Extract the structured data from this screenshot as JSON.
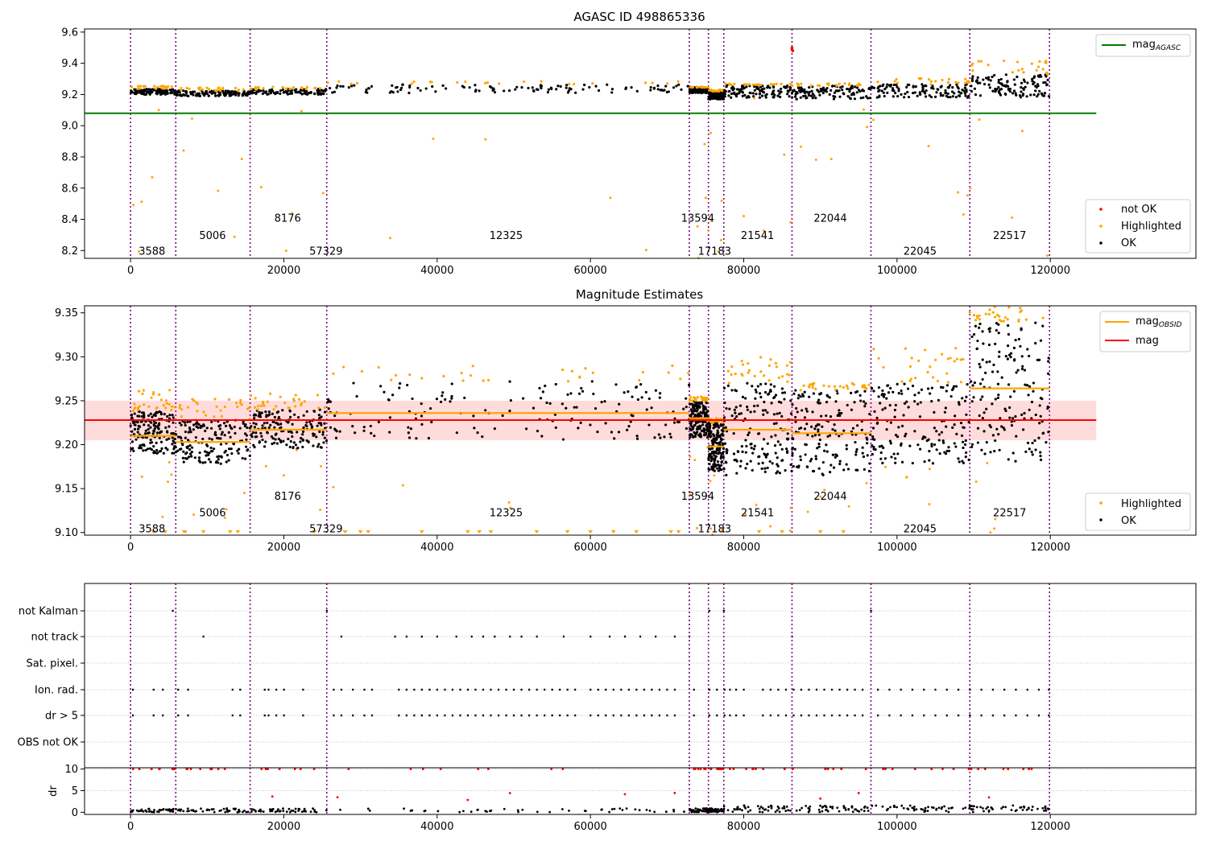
{
  "chart_data": [
    {
      "type": "scatter",
      "title": "AGASC ID 498865336",
      "xlim": [
        -6000,
        139000
      ],
      "ylim": [
        8.15,
        9.62
      ],
      "xticks": [
        0,
        20000,
        40000,
        60000,
        80000,
        100000,
        120000
      ],
      "yticks": [
        8.2,
        8.4,
        8.6,
        8.8,
        9.0,
        9.2,
        9.4,
        9.6
      ],
      "agasc_mag": 9.08,
      "reference_line_x_end": 126000,
      "observation_boundaries": [
        0,
        5900,
        15600,
        25600,
        72900,
        75400,
        77400,
        86300,
        96600,
        109500,
        119900
      ],
      "obsid_labels": [
        {
          "text": "3588",
          "x": 2800,
          "y": 8.2
        },
        {
          "text": "5006",
          "x": 10700,
          "y": 8.3
        },
        {
          "text": "8176",
          "x": 20500,
          "y": 8.41
        },
        {
          "text": "57329",
          "x": 25500,
          "y": 8.2
        },
        {
          "text": "12325",
          "x": 49000,
          "y": 8.3
        },
        {
          "text": "13594",
          "x": 74000,
          "y": 8.41
        },
        {
          "text": "17183",
          "x": 76200,
          "y": 8.2
        },
        {
          "text": "21541",
          "x": 81800,
          "y": 8.3
        },
        {
          "text": "22044",
          "x": 91300,
          "y": 8.41
        },
        {
          "text": "22045",
          "x": 103000,
          "y": 8.2
        },
        {
          "text": "22517",
          "x": 114700,
          "y": 8.3
        }
      ],
      "segments": [
        {
          "x0": 0,
          "x1": 5900,
          "ok_lo": 9.2,
          "ok_hi": 9.235,
          "hl_hi": 9.255
        },
        {
          "x0": 5900,
          "x1": 15600,
          "ok_lo": 9.19,
          "ok_hi": 9.225,
          "hl_hi": 9.245
        },
        {
          "x0": 15600,
          "x1": 25600,
          "ok_lo": 9.2,
          "ok_hi": 9.235,
          "hl_hi": 9.25
        },
        {
          "x0": 25600,
          "x1": 72900,
          "ok_lo": 9.21,
          "ok_hi": 9.265,
          "hl_hi": 9.285
        },
        {
          "x0": 72900,
          "x1": 75400,
          "ok_lo": 9.21,
          "ok_hi": 9.245,
          "hl_hi": 9.25
        },
        {
          "x0": 75400,
          "x1": 77400,
          "ok_lo": 9.17,
          "ok_hi": 9.22,
          "hl_hi": 9.23
        },
        {
          "x0": 77400,
          "x1": 86300,
          "ok_lo": 9.18,
          "ok_hi": 9.26,
          "hl_hi": 9.27
        },
        {
          "x0": 86300,
          "x1": 96600,
          "ok_lo": 9.17,
          "ok_hi": 9.255,
          "hl_hi": 9.27
        },
        {
          "x0": 96600,
          "x1": 109500,
          "ok_lo": 9.18,
          "ok_hi": 9.265,
          "hl_hi": 9.305
        },
        {
          "x0": 109500,
          "x1": 119900,
          "ok_lo": 9.18,
          "ok_hi": 9.33,
          "hl_hi": 9.42
        }
      ],
      "not_ok_points": [
        {
          "x": 86300,
          "y": 9.49
        },
        {
          "x": 86300,
          "y": 9.5
        },
        {
          "x": 86400,
          "y": 9.48
        }
      ],
      "legend_lines": [
        {
          "label": "mag",
          "subscript": "AGASC",
          "color": "#008000"
        }
      ],
      "legend_points": [
        {
          "label": "not OK",
          "color": "#ff0000"
        },
        {
          "label": "Highlighted",
          "color": "#ffa500"
        },
        {
          "label": "OK",
          "color": "#000000"
        }
      ],
      "legend_lines_placement": "upper right",
      "legend_points_placement": "lower right"
    },
    {
      "type": "scatter",
      "title": "Magnitude Estimates",
      "xlim": [
        -6000,
        139000
      ],
      "ylim": [
        9.097,
        9.358
      ],
      "xticks": [
        0,
        20000,
        40000,
        60000,
        80000,
        100000,
        120000
      ],
      "yticks": [
        9.1,
        9.15,
        9.2,
        9.25,
        9.3,
        9.35
      ],
      "mean_mag": 9.228,
      "mean_mag_band": [
        9.205,
        9.25
      ],
      "reference_line_x_end": 126000,
      "obsid_mags": [
        9.21,
        9.203,
        9.217,
        9.236,
        9.23,
        9.198,
        9.217,
        9.213,
        9.228,
        9.264
      ],
      "obsid_labels": [
        {
          "text": "3588",
          "x": 2800,
          "y": 9.105
        },
        {
          "text": "5006",
          "x": 10700,
          "y": 9.123
        },
        {
          "text": "8176",
          "x": 20500,
          "y": 9.142
        },
        {
          "text": "57329",
          "x": 25500,
          "y": 9.105
        },
        {
          "text": "12325",
          "x": 49000,
          "y": 9.123
        },
        {
          "text": "13594",
          "x": 74000,
          "y": 9.142
        },
        {
          "text": "17183",
          "x": 76200,
          "y": 9.105
        },
        {
          "text": "21541",
          "x": 81800,
          "y": 9.123
        },
        {
          "text": "22044",
          "x": 91300,
          "y": 9.142
        },
        {
          "text": "22045",
          "x": 103000,
          "y": 9.105
        },
        {
          "text": "22517",
          "x": 114700,
          "y": 9.123
        }
      ],
      "segments": [
        {
          "x0": 0,
          "x1": 5900,
          "ok_lo": 9.19,
          "ok_hi": 9.238,
          "hl_hi": 9.262
        },
        {
          "x0": 5900,
          "x1": 15600,
          "ok_lo": 9.178,
          "ok_hi": 9.228,
          "hl_hi": 9.252
        },
        {
          "x0": 15600,
          "x1": 25600,
          "ok_lo": 9.195,
          "ok_hi": 9.24,
          "hl_hi": 9.258
        },
        {
          "x0": 25600,
          "x1": 72900,
          "ok_lo": 9.205,
          "ok_hi": 9.272,
          "hl_hi": 9.29
        },
        {
          "x0": 72900,
          "x1": 75400,
          "ok_lo": 9.208,
          "ok_hi": 9.25,
          "hl_hi": 9.255
        },
        {
          "x0": 75400,
          "x1": 77400,
          "ok_lo": 9.17,
          "ok_hi": 9.225,
          "hl_hi": 9.23
        },
        {
          "x0": 77400,
          "x1": 86300,
          "ok_lo": 9.165,
          "ok_hi": 9.27,
          "hl_hi": 9.3
        },
        {
          "x0": 86300,
          "x1": 96600,
          "ok_lo": 9.165,
          "ok_hi": 9.262,
          "hl_hi": 9.27
        },
        {
          "x0": 96600,
          "x1": 109500,
          "ok_lo": 9.178,
          "ok_hi": 9.27,
          "hl_hi": 9.31
        },
        {
          "x0": 109500,
          "x1": 119900,
          "ok_lo": 9.18,
          "ok_hi": 9.34,
          "hl_hi": 9.358
        }
      ],
      "legend_lines": [
        {
          "label": "mag",
          "subscript": "OBSID",
          "color": "#ffa500"
        },
        {
          "label": "mag",
          "subscript": "",
          "color": "#ff0000"
        }
      ],
      "legend_points": [
        {
          "label": "Highlighted",
          "color": "#ffa500"
        },
        {
          "label": "OK",
          "color": "#000000"
        }
      ],
      "legend_lines_placement": "upper right",
      "legend_points_placement": "lower right"
    },
    {
      "type": "scatter",
      "xlim": [
        -6000,
        139000
      ],
      "categories": [
        "not Kalman",
        "not track",
        "Sat. pixel.",
        "Ion. rad.",
        "dr > 5",
        "OBS not OK"
      ],
      "flag_sample_x": {
        "not Kalman": [
          5500,
          25600,
          75500,
          77400,
          96600
        ],
        "not track": [
          9500,
          27500,
          34500,
          36000,
          38000,
          40000,
          42500,
          44500,
          46000,
          47500,
          49500,
          51000,
          53000,
          56500,
          60000,
          62500,
          64500,
          66500,
          68500,
          71000,
          72900,
          86300
        ],
        "Sat. pixel.": [],
        "Ion. rad.": [
          300,
          3000,
          4200,
          6200,
          7500,
          13300,
          14300,
          17500,
          18000,
          19000,
          20000,
          22500,
          26500,
          27500,
          29000,
          30500,
          31500,
          35000,
          36000,
          37000,
          38000,
          39000,
          40000,
          41000,
          42000,
          43000,
          44000,
          45000,
          46000,
          47000,
          48000,
          49000,
          50000,
          51000,
          52000,
          53000,
          54000,
          55000,
          56000,
          57000,
          58000,
          60000,
          61000,
          62000,
          63000,
          64000,
          65000,
          66000,
          67000,
          68000,
          69000,
          70000,
          71000,
          73500,
          75500,
          76500,
          77500,
          78200,
          79000,
          80000,
          82500,
          83500,
          84500,
          85500,
          86500,
          87500,
          88500,
          89500,
          90500,
          91500,
          92500,
          93500,
          94500,
          95500,
          97500,
          99000,
          100500,
          102000,
          103500,
          105000,
          106500,
          108000,
          109500,
          111000,
          112500,
          114000,
          115500,
          117000,
          118500,
          119800
        ],
        "dr > 5": [
          300,
          3000,
          4200,
          6200,
          7500,
          13300,
          14300,
          17500,
          18000,
          19000,
          20000,
          22500,
          26500,
          27500,
          29000,
          30500,
          31500,
          35000,
          36000,
          37000,
          38000,
          39000,
          40000,
          41000,
          42000,
          43000,
          44000,
          45000,
          46000,
          47000,
          48000,
          49000,
          50000,
          51000,
          52000,
          53000,
          54000,
          55000,
          56000,
          57000,
          58000,
          60000,
          61000,
          62000,
          63000,
          64000,
          65000,
          66000,
          67000,
          68000,
          69000,
          70000,
          71000,
          73500,
          75500,
          76500,
          77500,
          78200,
          79000,
          80000,
          82500,
          83500,
          84500,
          85500,
          86500,
          87500,
          88500,
          89500,
          90500,
          91500,
          92500,
          93500,
          94500,
          95500,
          97500,
          99000,
          100500,
          102000,
          103500,
          105000,
          106500,
          108000,
          109500,
          111000,
          112500,
          114000,
          115500,
          117000,
          118500,
          119800
        ],
        "OBS not OK": []
      }
    },
    {
      "type": "scatter",
      "ylabel": "dr",
      "xlim": [
        -6000,
        139000
      ],
      "ylim": [
        -0.5,
        10.3
      ],
      "xticks": [
        0,
        20000,
        40000,
        60000,
        80000,
        100000,
        120000
      ],
      "yticks": [
        0,
        5,
        10
      ],
      "dr_capped_color": "#ff0000",
      "dr_ok_color": "#000000"
    }
  ],
  "axes": {
    "x_tick_labels": [
      "0",
      "20000",
      "40000",
      "60000",
      "80000",
      "100000",
      "120000"
    ],
    "top_y_tick_labels": [
      "8.2",
      "8.4",
      "8.6",
      "8.8",
      "9.0",
      "9.2",
      "9.4",
      "9.6"
    ],
    "mid_y_tick_labels": [
      "9.10",
      "9.15",
      "9.20",
      "9.25",
      "9.30",
      "9.35"
    ],
    "dr_y_tick_labels": [
      "0",
      "5",
      "10"
    ]
  },
  "colors": {
    "ok": "#000000",
    "highlighted": "#ffa500",
    "not_ok": "#ff0000",
    "agasc_line": "#008000",
    "mean_line": "#ff0000",
    "obsid_line": "#ffa500",
    "boundary": "#800080",
    "band": "#ffc0c0"
  }
}
